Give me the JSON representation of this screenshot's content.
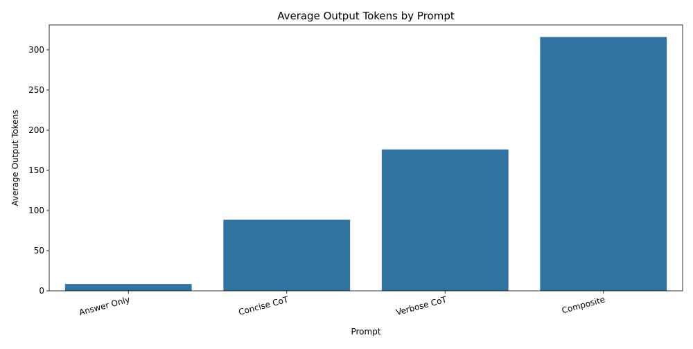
{
  "chart_data": {
    "type": "bar",
    "title": "Average Output Tokens by Prompt",
    "xlabel": "Prompt",
    "ylabel": "Average Output Tokens",
    "categories": [
      "Answer Only",
      "Concise CoT",
      "Verbose CoT",
      "Composite"
    ],
    "values": [
      8.5,
      88.5,
      176,
      316
    ],
    "ylim": [
      0,
      331
    ],
    "yticks": [
      0,
      50,
      100,
      150,
      200,
      250,
      300
    ],
    "grid": false,
    "legend": "none",
    "bar_color": "#3274a1",
    "x_tick_rotation": "slanted"
  }
}
